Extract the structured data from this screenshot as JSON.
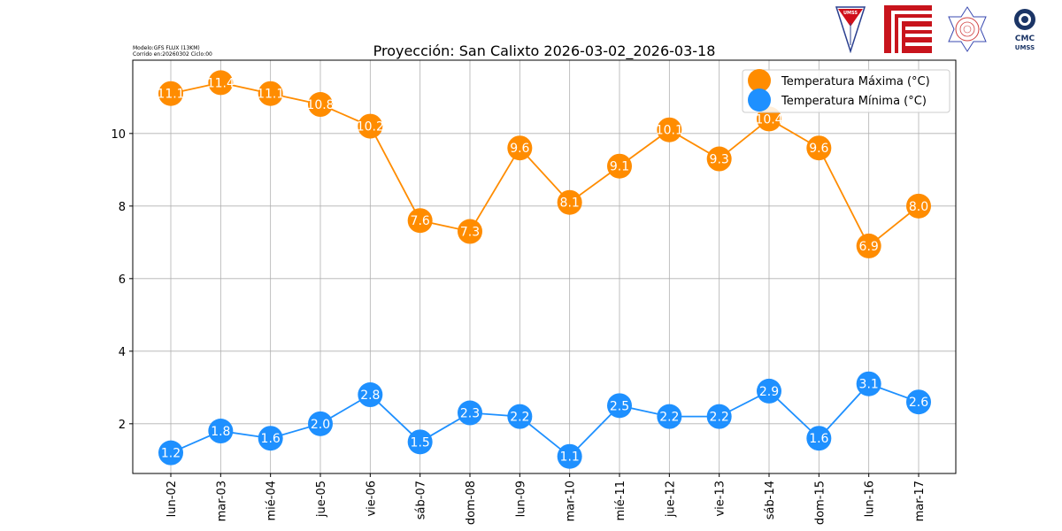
{
  "header": {
    "model_line": "Modelo:GFS FLUX (13KM)",
    "run_line": "Corrido en:20260302 Ciclo:00",
    "logos": [
      "UMSS",
      "FCyT",
      "Laboratorio de Hidráulica",
      "CMC UMSS"
    ]
  },
  "colors": {
    "max": "#ff8c00",
    "min": "#1e90ff"
  },
  "chart_data": {
    "type": "line",
    "title": "Proyección: San Calixto 2026-03-02_2026-03-18",
    "xlabel": "",
    "ylabel": "",
    "categories": [
      "lun-02",
      "mar-03",
      "mié-04",
      "jue-05",
      "vie-06",
      "sáb-07",
      "dom-08",
      "lun-09",
      "mar-10",
      "mié-11",
      "jue-12",
      "vie-13",
      "sáb-14",
      "dom-15",
      "lun-16",
      "mar-17"
    ],
    "series": [
      {
        "name": "Temperatura Máxima  (°C)",
        "color": "#ff8c00",
        "values": [
          11.1,
          11.4,
          11.1,
          10.8,
          10.2,
          7.6,
          7.3,
          9.6,
          8.1,
          9.1,
          10.1,
          9.3,
          10.4,
          9.6,
          6.9,
          8.0
        ],
        "labels": [
          "11.1",
          "11.4",
          "11.1",
          "10.8",
          "10.2",
          "7.6",
          "7.3",
          "9.6",
          "8.1",
          "9.1",
          "10.1",
          "9.3",
          "10.4",
          "9.6",
          "6.9",
          "8.0"
        ]
      },
      {
        "name": "Temperatura Mínima  (°C)",
        "color": "#1e90ff",
        "values": [
          1.2,
          1.8,
          1.6,
          2.0,
          2.8,
          1.5,
          2.3,
          2.2,
          1.1,
          2.5,
          2.2,
          2.2,
          2.9,
          1.6,
          3.1,
          2.6
        ],
        "labels": [
          "1.2",
          "1.8",
          "1.6",
          "2.0",
          "2.8",
          "1.5",
          "2.3",
          "2.2",
          "1.1",
          "2.5",
          "2.2",
          "2.2",
          "2.9",
          "1.6",
          "3.1",
          "2.6"
        ]
      }
    ],
    "yticks": [
      "2",
      "4",
      "6",
      "8",
      "10"
    ],
    "ylim": [
      0.63,
      12.02
    ],
    "grid": true,
    "legend": "top-right"
  }
}
